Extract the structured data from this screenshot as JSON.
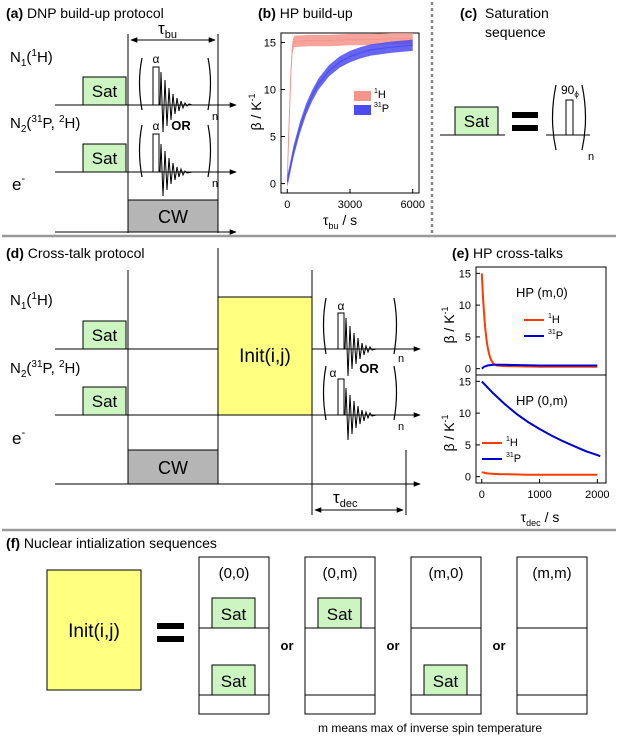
{
  "panels": {
    "a": {
      "tag": "(a)",
      "title": "DNP build-up protocol",
      "tau": "τ",
      "tau_sub": "bu",
      "n1": "N",
      "n1_sub": "1",
      "n1_rest_a": "(",
      "n1_sup": "1",
      "n1_rest_b": "H)",
      "n2": "N",
      "n2_sub": "2",
      "n2_rest_a": "(",
      "n2_sup1": "31",
      "n2_mid": "P, ",
      "n2_sup2": "2",
      "n2_rest_b": "H)",
      "e": "e",
      "e_sup": "-",
      "sat": "Sat",
      "alpha": "α",
      "or": "OR",
      "n": "n",
      "cw": "CW"
    },
    "b": {
      "tag": "(b)",
      "title": "HP build-up"
    },
    "c": {
      "tag": "(c)",
      "title_line1": "Saturation",
      "title_line2": "sequence",
      "sat": "Sat",
      "pulse": "90",
      "pulse_sub": "ϕ",
      "n": "n"
    },
    "d": {
      "tag": "(d)",
      "title": "Cross-talk protocol",
      "init": "Init(i,j)",
      "tau": "τ",
      "tau_sub": "dec"
    },
    "e": {
      "tag": "(e)",
      "title": "HP cross-talks"
    },
    "f": {
      "tag": "(f)",
      "title": "Nuclear intialization sequences",
      "init": "Init(i,j)",
      "or": "or",
      "footnote": "m means max of inverse spin temperature",
      "columns": [
        {
          "label": "(0,0)",
          "top": "Sat",
          "bottom": "Sat"
        },
        {
          "label": "(0,m)",
          "top": "Sat",
          "bottom": ""
        },
        {
          "label": "(m,0)",
          "top": "",
          "bottom": "Sat"
        },
        {
          "label": "(m,m)",
          "top": "",
          "bottom": ""
        }
      ]
    }
  },
  "chart_data": [
    {
      "type": "line",
      "title": "HP build-up",
      "xlabel": "τbu / s",
      "ylabel": "β / K⁻¹",
      "xlim": [
        -300,
        6300
      ],
      "ylim": [
        -1,
        16
      ],
      "xticks": [
        0,
        3000,
        6000
      ],
      "yticks": [
        0,
        5,
        10,
        15
      ],
      "grid": false,
      "legend_position": "right",
      "series": [
        {
          "name": "¹H",
          "sup": "1",
          "base": "H",
          "color": "#f4948a",
          "band": true,
          "points": [
            [
              0,
              0.4
            ],
            [
              60,
              4.5
            ],
            [
              120,
              8.5
            ],
            [
              180,
              12.0
            ],
            [
              240,
              14.4
            ],
            [
              320,
              15.1
            ],
            [
              1000,
              15.2
            ],
            [
              2000,
              15.2
            ],
            [
              3000,
              15.3
            ],
            [
              4000,
              15.3
            ],
            [
              5000,
              15.4
            ],
            [
              6000,
              15.4
            ]
          ]
        },
        {
          "name": "³¹P",
          "sup": "31",
          "base": "P",
          "color": "#4b4bf0",
          "band": true,
          "points": [
            [
              0,
              0.2
            ],
            [
              300,
              3.4
            ],
            [
              600,
              5.9
            ],
            [
              900,
              7.9
            ],
            [
              1200,
              9.4
            ],
            [
              1500,
              10.6
            ],
            [
              2000,
              12.0
            ],
            [
              2500,
              12.9
            ],
            [
              3000,
              13.5
            ],
            [
              3500,
              13.9
            ],
            [
              4000,
              14.2
            ],
            [
              5000,
              14.5
            ],
            [
              6000,
              14.7
            ]
          ]
        }
      ]
    },
    {
      "type": "line",
      "title": "HP (m,0)",
      "xlabel": "",
      "ylabel": "β / K⁻¹",
      "xlim": [
        -100,
        2150
      ],
      "ylim": [
        -1,
        16
      ],
      "yticks": [
        0,
        5,
        10,
        15
      ],
      "grid": false,
      "legend_position": "right",
      "series": [
        {
          "name": "¹H",
          "sup": "1",
          "base": "H",
          "color": "#ff3c00",
          "points": [
            [
              0,
              15.0
            ],
            [
              20,
              11.5
            ],
            [
              40,
              8.6
            ],
            [
              60,
              6.4
            ],
            [
              80,
              4.7
            ],
            [
              100,
              3.4
            ],
            [
              130,
              2.2
            ],
            [
              160,
              1.4
            ],
            [
              200,
              0.8
            ],
            [
              260,
              0.5
            ],
            [
              400,
              0.4
            ],
            [
              1000,
              0.3
            ],
            [
              2000,
              0.3
            ]
          ]
        },
        {
          "name": "³¹P",
          "sup": "31",
          "base": "P",
          "color": "#0000d0",
          "points": [
            [
              0,
              0.0
            ],
            [
              40,
              0.3
            ],
            [
              100,
              0.5
            ],
            [
              200,
              0.6
            ],
            [
              400,
              0.6
            ],
            [
              1000,
              0.5
            ],
            [
              2000,
              0.5
            ]
          ]
        }
      ]
    },
    {
      "type": "line",
      "title": "HP (0,m)",
      "xlabel": "τdec / s",
      "ylabel": "β / K⁻¹",
      "xlim": [
        -100,
        2150
      ],
      "ylim": [
        -1,
        16
      ],
      "xticks": [
        0,
        1000,
        2000
      ],
      "yticks": [
        0,
        5,
        10,
        15
      ],
      "grid": false,
      "legend_position": "right",
      "series": [
        {
          "name": "¹H",
          "sup": "1",
          "base": "H",
          "color": "#ff3c00",
          "points": [
            [
              0,
              0.7
            ],
            [
              100,
              0.5
            ],
            [
              300,
              0.4
            ],
            [
              800,
              0.3
            ],
            [
              1500,
              0.3
            ],
            [
              2000,
              0.3
            ]
          ]
        },
        {
          "name": "³¹P",
          "sup": "31",
          "base": "P",
          "color": "#0000d0",
          "points": [
            [
              0,
              15.0
            ],
            [
              200,
              13.1
            ],
            [
              400,
              11.4
            ],
            [
              600,
              9.9
            ],
            [
              800,
              8.6
            ],
            [
              1000,
              7.5
            ],
            [
              1200,
              6.5
            ],
            [
              1400,
              5.6
            ],
            [
              1600,
              4.8
            ],
            [
              1800,
              4.0
            ],
            [
              2000,
              3.4
            ],
            [
              2050,
              3.2
            ]
          ]
        }
      ]
    }
  ]
}
